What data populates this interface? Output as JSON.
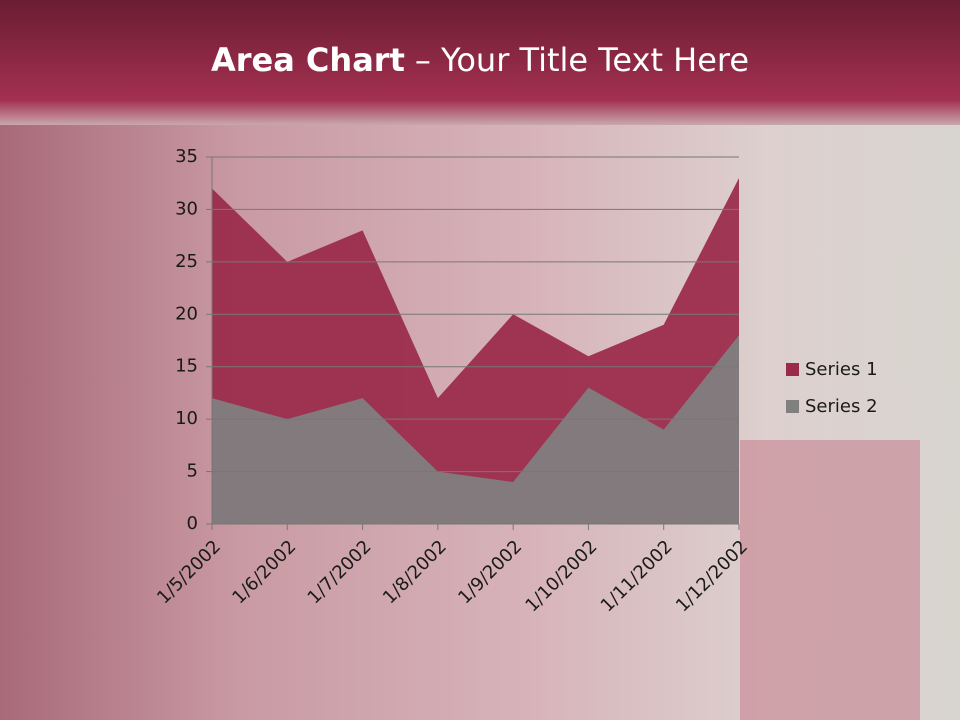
{
  "chart_data": {
    "type": "area",
    "title_parts": [
      "Area Chart",
      "– Your Title Text Here"
    ],
    "categories": [
      "1/5/2002",
      "1/6/2002",
      "1/7/2002",
      "1/8/2002",
      "1/9/2002",
      "1/10/2002",
      "1/11/2002",
      "1/12/2002"
    ],
    "series": [
      {
        "name": "Series 1",
        "color": "#9a2a4a",
        "values": [
          32,
          25,
          28,
          12,
          20,
          16,
          19,
          33
        ]
      },
      {
        "name": "Series 2",
        "color": "#808080",
        "values": [
          12,
          10,
          12,
          5,
          4,
          13,
          9,
          18
        ]
      }
    ],
    "ylim": [
      0,
      35
    ],
    "yticks": [
      0,
      5,
      10,
      15,
      20,
      25,
      30,
      35
    ],
    "grid": true,
    "legend": "right"
  }
}
